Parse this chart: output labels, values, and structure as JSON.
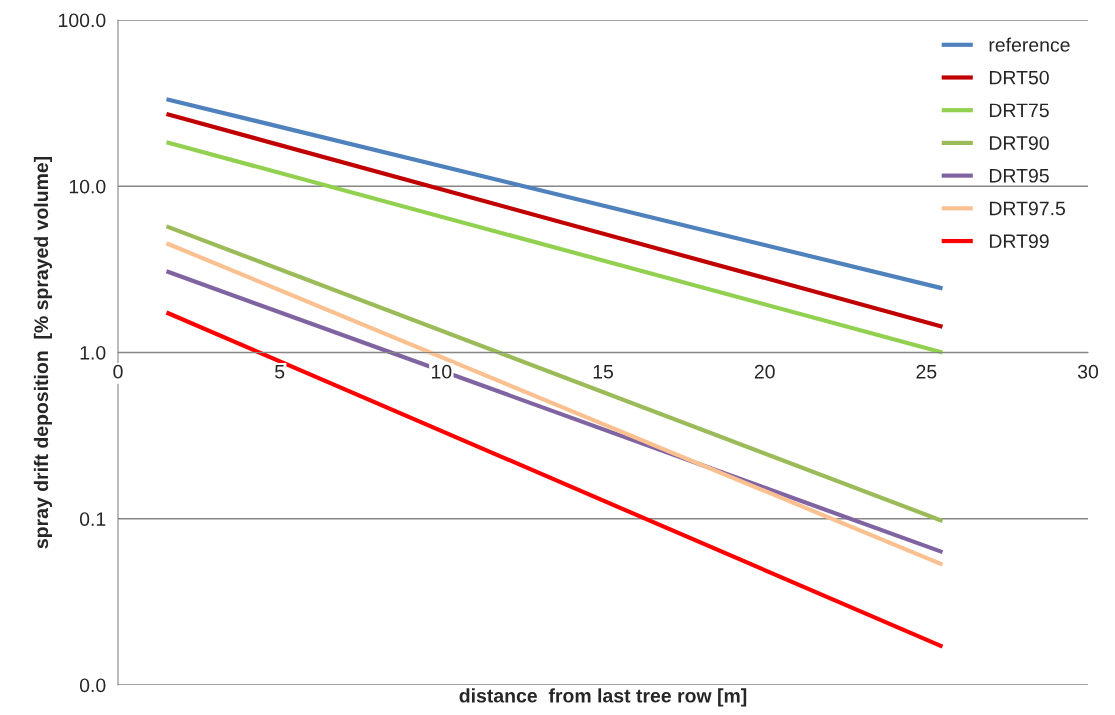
{
  "chart_data": {
    "type": "line",
    "xlabel": "distance  from last tree row [m]",
    "ylabel": "spray drift deposition  [% sprayed volume]",
    "log": "y",
    "grid": "y",
    "legend": "top right",
    "marker": "none",
    "line_style": "solid",
    "xlim": [
      0,
      30
    ],
    "xticks": [
      0,
      5,
      10,
      15,
      20,
      25,
      30
    ],
    "ylim": [
      0.01,
      100
    ],
    "yticks": [
      {
        "value": 0.01,
        "label": "0.0"
      },
      {
        "value": 0.1,
        "label": "0.1"
      },
      {
        "value": 1,
        "label": "1.0"
      },
      {
        "value": 10,
        "label": "10.0"
      },
      {
        "value": 100,
        "label": "100.0"
      }
    ],
    "x": [
      1.5,
      25.5
    ],
    "series": [
      {
        "name": "reference",
        "color": "#4f81bd",
        "values": [
          33.4,
          2.43
        ]
      },
      {
        "name": "DRT50",
        "color": "#c00000",
        "values": [
          27.2,
          1.43
        ]
      },
      {
        "name": "DRT75",
        "color": "#92d050",
        "values": [
          18.4,
          1.0
        ]
      },
      {
        "name": "DRT90",
        "color": "#9bbb59",
        "values": [
          5.74,
          0.097
        ]
      },
      {
        "name": "DRT95",
        "color": "#8064a2",
        "values": [
          3.08,
          0.063
        ]
      },
      {
        "name": "DRT97.5",
        "color": "#fac090",
        "values": [
          4.54,
          0.053
        ]
      },
      {
        "name": "DRT99",
        "color": "#ff0000",
        "values": [
          1.74,
          0.017
        ]
      }
    ]
  }
}
